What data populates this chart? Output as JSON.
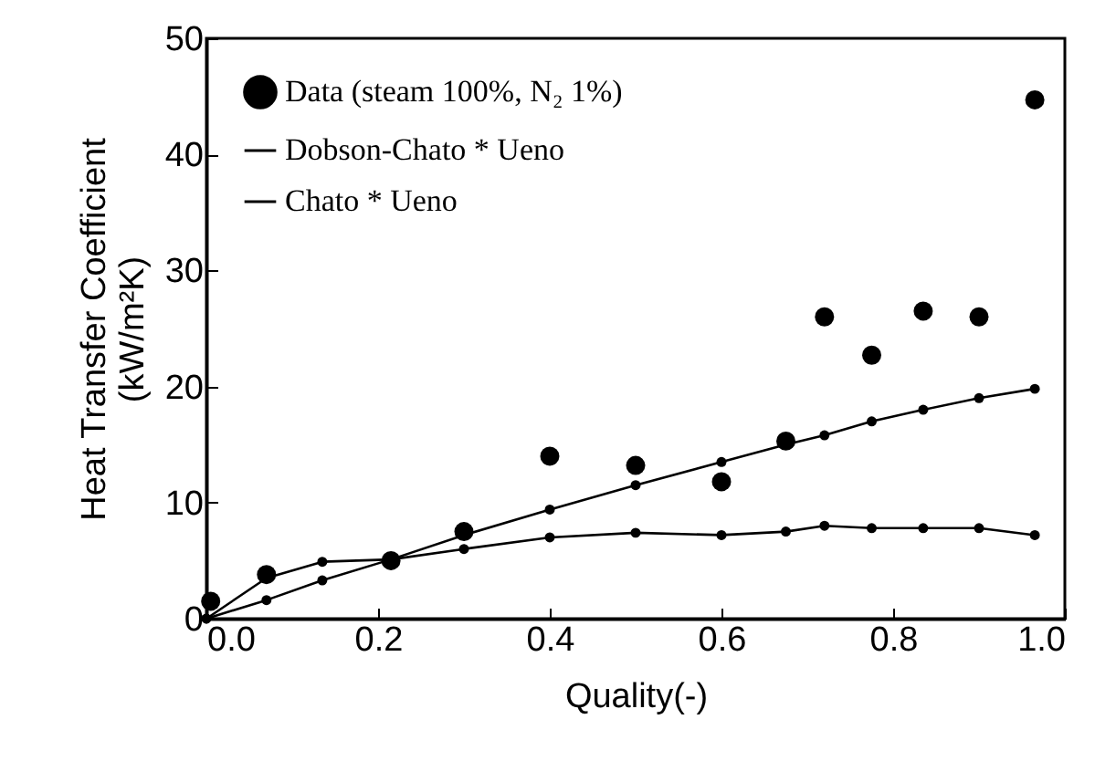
{
  "chart_data": {
    "type": "line",
    "xlabel": "Quality(-)",
    "ylabel": "Heat Transfer Coefficient (kW/m²K)",
    "xlim": [
      0,
      1
    ],
    "ylim": [
      0,
      50
    ],
    "xticks": [
      {
        "value": 0,
        "label": "0.0"
      },
      {
        "value": 0.2,
        "label": "0.2"
      },
      {
        "value": 0.4,
        "label": "0.4"
      },
      {
        "value": 0.6,
        "label": "0.6"
      },
      {
        "value": 0.8,
        "label": "0.8"
      },
      {
        "value": 1,
        "label": "1.0"
      }
    ],
    "yticks": [
      0,
      10,
      20,
      30,
      40,
      50
    ],
    "legend": "top left",
    "grid": false,
    "series": [
      {
        "name": "Data (steam 100%, N₂ 1%)",
        "type": "scatter",
        "color": "#000000",
        "x": [
          0.005,
          0.07,
          0.215,
          0.3,
          0.4,
          0.5,
          0.6,
          0.675,
          0.72,
          0.775,
          0.835,
          0.9,
          0.965
        ],
        "values": [
          1.5,
          3.8,
          5,
          7.5,
          14,
          13.2,
          11.8,
          15.3,
          26,
          22.7,
          26.5,
          26,
          44.7
        ]
      },
      {
        "name": "Dobson-Chato * Ueno",
        "marker": "circle",
        "color": "#000000",
        "x": [
          0,
          0.07,
          0.135,
          0.215,
          0.3,
          0.4,
          0.5,
          0.6,
          0.675,
          0.72,
          0.775,
          0.835,
          0.9,
          0.965
        ],
        "values": [
          0,
          1.6,
          3.3,
          5.1,
          7.2,
          9.4,
          11.5,
          13.5,
          15,
          15.8,
          17,
          18,
          19,
          19.8
        ]
      },
      {
        "name": "Chato * Ueno",
        "marker": "circle",
        "color": "#000000",
        "x": [
          0,
          0.07,
          0.135,
          0.215,
          0.3,
          0.4,
          0.5,
          0.6,
          0.675,
          0.72,
          0.775,
          0.835,
          0.9,
          0.965
        ],
        "values": [
          0,
          3.5,
          4.9,
          5.1,
          6,
          7,
          7.4,
          7.2,
          7.5,
          8,
          7.8,
          7.8,
          7.8,
          7.2
        ]
      }
    ]
  }
}
